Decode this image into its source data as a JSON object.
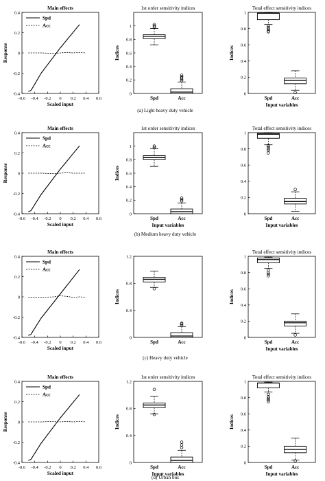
{
  "figure": {
    "captions": [
      "(a)   Light heavy duty vehicle",
      "(b)   Medium heavy duty vehicle",
      "(c)   Heavy duty vehicle",
      "(d)   Urban bus"
    ]
  },
  "chart_data": [
    {
      "type": "line",
      "panel": "a",
      "title": "Main effects",
      "xlabel": "Scaled input",
      "ylabel": "Response",
      "xlim": [
        -0.6,
        0.6
      ],
      "ylim": [
        -0.4,
        0.4
      ],
      "xticks": [
        -0.6,
        -0.4,
        -0.2,
        0,
        0.2,
        0.4,
        0.6
      ],
      "yticks": [
        -0.4,
        -0.2,
        0,
        0.2,
        0.4
      ],
      "legend": "top-left",
      "series": [
        {
          "name": "Spd",
          "style": "solid",
          "x": [
            -0.5,
            -0.46,
            -0.42,
            -0.3,
            0,
            0.3
          ],
          "y": [
            -0.38,
            -0.37,
            -0.33,
            -0.2,
            0.05,
            0.28
          ]
        },
        {
          "name": "Acc",
          "style": "dashed",
          "x": [
            -0.5,
            -0.3,
            -0.1,
            0,
            0.1,
            0.2,
            0.3,
            0.4
          ],
          "y": [
            0.0,
            0.0,
            -0.005,
            0.0,
            0.005,
            0.0,
            0.005,
            0.0
          ]
        }
      ]
    },
    {
      "type": "box",
      "panel": "a",
      "title": "1st order sensitivity indices",
      "xlabel": "",
      "ylabel": "Indices",
      "ylim": [
        0,
        1.2
      ],
      "yticks": [
        0,
        0.2,
        0.4,
        0.6,
        0.8,
        1
      ],
      "categories": [
        "Spd",
        "Acc"
      ],
      "boxes": [
        {
          "whisker_low": 0.72,
          "q1": 0.81,
          "median": 0.845,
          "q3": 0.87,
          "whisker_high": 0.96,
          "outliers": [
            0.98,
            1.0,
            1.02
          ]
        },
        {
          "whisker_low": 0.0,
          "q1": 0.0,
          "median": 0.02,
          "q3": 0.07,
          "whisker_high": 0.17,
          "outliers": [
            0.19,
            0.21,
            0.23,
            0.25,
            0.27
          ]
        }
      ]
    },
    {
      "type": "box",
      "panel": "a",
      "title": "Total effect sensitivity indices",
      "xlabel": "Input variables",
      "ylabel": "Indices",
      "ylim": [
        0,
        1.0
      ],
      "yticks": [
        0,
        0.2,
        0.4,
        0.6,
        0.8,
        1
      ],
      "categories": [
        "Spd",
        "Acc"
      ],
      "boxes": [
        {
          "whisker_low": 0.85,
          "q1": 0.91,
          "median": 0.99,
          "q3": 0.99,
          "whisker_high": 1.0,
          "outliers": [
            0.83,
            0.81,
            0.79,
            0.77,
            0.76
          ]
        },
        {
          "whisker_low": 0.04,
          "q1": 0.12,
          "median": 0.16,
          "q3": 0.19,
          "whisker_high": 0.28,
          "outliers": [
            0.01
          ]
        }
      ]
    },
    {
      "type": "line",
      "panel": "b",
      "title": "Main effects",
      "xlabel": "Scaled input",
      "ylabel": "Response",
      "xlim": [
        -0.6,
        0.6
      ],
      "ylim": [
        -0.4,
        0.4
      ],
      "xticks": [
        -0.6,
        -0.4,
        -0.2,
        0,
        0.2,
        0.4,
        0.6
      ],
      "yticks": [
        -0.4,
        -0.2,
        0,
        0.2,
        0.4
      ],
      "legend": "top-left",
      "series": [
        {
          "name": "Spd",
          "style": "solid",
          "x": [
            -0.5,
            -0.46,
            -0.42,
            -0.3,
            0,
            0.3
          ],
          "y": [
            -0.38,
            -0.37,
            -0.33,
            -0.21,
            0.04,
            0.27
          ]
        },
        {
          "name": "Acc",
          "style": "dashed",
          "x": [
            -0.5,
            -0.3,
            -0.1,
            0,
            0.1,
            0.2,
            0.3,
            0.4
          ],
          "y": [
            0.0,
            0.0,
            -0.005,
            0.0,
            0.005,
            0.0,
            0.0,
            0.0
          ]
        }
      ]
    },
    {
      "type": "box",
      "panel": "b",
      "title": "1st order sensitivity indices",
      "xlabel": "Input variables",
      "ylabel": "Indices",
      "ylim": [
        0,
        1.2
      ],
      "yticks": [
        0,
        0.2,
        0.4,
        0.6,
        0.8,
        1
      ],
      "categories": [
        "Spd",
        "Acc"
      ],
      "boxes": [
        {
          "whisker_low": 0.7,
          "q1": 0.8,
          "median": 0.83,
          "q3": 0.86,
          "whisker_high": 0.96,
          "outliers": [
            0.98,
            1.0
          ]
        },
        {
          "whisker_low": 0.0,
          "q1": 0.0,
          "median": 0.03,
          "q3": 0.07,
          "whisker_high": 0.16,
          "outliers": [
            0.19,
            0.21,
            0.23
          ]
        }
      ]
    },
    {
      "type": "box",
      "panel": "b",
      "title": "Total effect sensitivity indices",
      "xlabel": "Input variables",
      "ylabel": "",
      "ylim": [
        0,
        1.0
      ],
      "yticks": [
        0,
        0.2,
        0.4,
        0.6,
        0.8,
        1
      ],
      "categories": [
        "Spd",
        "Acc"
      ],
      "boxes": [
        {
          "whisker_low": 0.85,
          "q1": 0.93,
          "median": 0.98,
          "q3": 0.99,
          "whisker_high": 1.0,
          "outliers": [
            0.84,
            0.82,
            0.8,
            0.78,
            0.75
          ]
        },
        {
          "whisker_low": 0.03,
          "q1": 0.12,
          "median": 0.15,
          "q3": 0.19,
          "whisker_high": 0.27,
          "outliers": [
            0.3
          ]
        }
      ]
    },
    {
      "type": "line",
      "panel": "c",
      "title": "Main effects",
      "xlabel": "Scaled input",
      "ylabel": "",
      "xlim": [
        -0.6,
        0.6
      ],
      "ylim": [
        -0.4,
        0.4
      ],
      "xticks": [
        -0.6,
        -0.4,
        -0.2,
        0,
        0.2,
        0.4,
        0.6
      ],
      "yticks": [
        -0.4,
        -0.2,
        0,
        0.2,
        0.4
      ],
      "legend": "top-left",
      "series": [
        {
          "name": "Spd",
          "style": "solid",
          "x": [
            -0.5,
            -0.46,
            -0.42,
            -0.3,
            0,
            0.3
          ],
          "y": [
            -0.38,
            -0.37,
            -0.33,
            -0.21,
            0.03,
            0.27
          ]
        },
        {
          "name": "Acc",
          "style": "dashed",
          "x": [
            -0.5,
            -0.3,
            -0.1,
            0,
            0.1,
            0.2,
            0.3,
            0.4
          ],
          "y": [
            -0.005,
            -0.005,
            0.0,
            0.01,
            0.005,
            -0.005,
            0.0,
            -0.005
          ]
        }
      ]
    },
    {
      "type": "box",
      "panel": "c",
      "title": "",
      "xlabel": "",
      "ylabel": "Indices",
      "ylim": [
        0,
        1.2
      ],
      "yticks": [
        0,
        0.4,
        0.8,
        1.2
      ],
      "categories": [
        "Spd",
        "Acc"
      ],
      "boxes": [
        {
          "whisker_low": 0.74,
          "q1": 0.82,
          "median": 0.86,
          "q3": 0.89,
          "whisker_high": 0.98,
          "outliers": [
            0.72
          ]
        },
        {
          "whisker_low": 0.0,
          "q1": 0.0,
          "median": 0.02,
          "q3": 0.07,
          "whisker_high": 0.16,
          "outliers": [
            0.18,
            0.2,
            0.21
          ]
        }
      ]
    },
    {
      "type": "box",
      "panel": "c",
      "title": "Total effect sensitivity indices",
      "xlabel": "Input variables",
      "ylabel": "Indices",
      "ylim": [
        0,
        1.0
      ],
      "yticks": [
        0,
        0.2,
        0.4,
        0.6,
        0.8,
        1
      ],
      "categories": [
        "Spd",
        "Acc"
      ],
      "boxes": [
        {
          "whisker_low": 0.85,
          "q1": 0.92,
          "median": 0.96,
          "q3": 0.98,
          "whisker_high": 0.99,
          "outliers": [
            0.83,
            0.8,
            0.78,
            0.76
          ]
        },
        {
          "whisker_low": 0.05,
          "q1": 0.14,
          "median": 0.18,
          "q3": 0.2,
          "whisker_high": 0.29,
          "outliers": [
            0.03
          ]
        }
      ]
    },
    {
      "type": "line",
      "panel": "d",
      "title": "Main effects",
      "xlabel": "Scaled input",
      "ylabel": "Response",
      "xlim": [
        -0.6,
        0.6
      ],
      "ylim": [
        -0.4,
        0.4
      ],
      "xticks": [
        -0.6,
        -0.4,
        -0.2,
        0,
        0.2,
        0.4,
        0.6
      ],
      "yticks": [
        -0.4,
        -0.2,
        0,
        0.2,
        0.4
      ],
      "legend": "top-left",
      "series": [
        {
          "name": "Spd",
          "style": "solid",
          "x": [
            -0.5,
            -0.46,
            -0.42,
            -0.3,
            0,
            0.3
          ],
          "y": [
            -0.38,
            -0.37,
            -0.33,
            -0.21,
            0.04,
            0.27
          ]
        },
        {
          "name": "Acc",
          "style": "dashed",
          "x": [
            -0.5,
            -0.3,
            -0.1,
            0,
            0.1,
            0.2,
            0.3,
            0.4
          ],
          "y": [
            0.0,
            0.0,
            0.005,
            0.0,
            0.005,
            0.0,
            0.005,
            0.0
          ]
        }
      ]
    },
    {
      "type": "box",
      "panel": "d",
      "title": "1st order sensitivity indices",
      "xlabel": "Input variables",
      "ylabel": "Indices",
      "ylim": [
        0,
        1.2
      ],
      "yticks": [
        0,
        0.4,
        0.8,
        1.2
      ],
      "categories": [
        "Spd",
        "Acc"
      ],
      "boxes": [
        {
          "whisker_low": 0.72,
          "q1": 0.81,
          "median": 0.85,
          "q3": 0.88,
          "whisker_high": 0.98,
          "outliers": [
            0.71,
            1.08
          ]
        },
        {
          "whisker_low": 0.0,
          "q1": 0.0,
          "median": 0.03,
          "q3": 0.08,
          "whisker_high": 0.18,
          "outliers": [
            0.22,
            0.26,
            0.3
          ]
        }
      ]
    },
    {
      "type": "box",
      "panel": "d",
      "title": "Total effect sensitivity indices",
      "xlabel": "Input variables",
      "ylabel": "Indices",
      "ylim": [
        0,
        1.0
      ],
      "yticks": [
        0,
        0.2,
        0.4,
        0.6,
        0.8,
        1
      ],
      "categories": [
        "Spd",
        "Acc"
      ],
      "boxes": [
        {
          "whisker_low": 0.87,
          "q1": 0.92,
          "median": 0.98,
          "q3": 0.98,
          "whisker_high": 0.99,
          "outliers": [
            0.84,
            0.81,
            0.79,
            0.77,
            0.75
          ]
        },
        {
          "whisker_low": 0.03,
          "q1": 0.12,
          "median": 0.16,
          "q3": 0.2,
          "whisker_high": 0.3,
          "outliers": [
            0.02
          ]
        }
      ]
    }
  ]
}
